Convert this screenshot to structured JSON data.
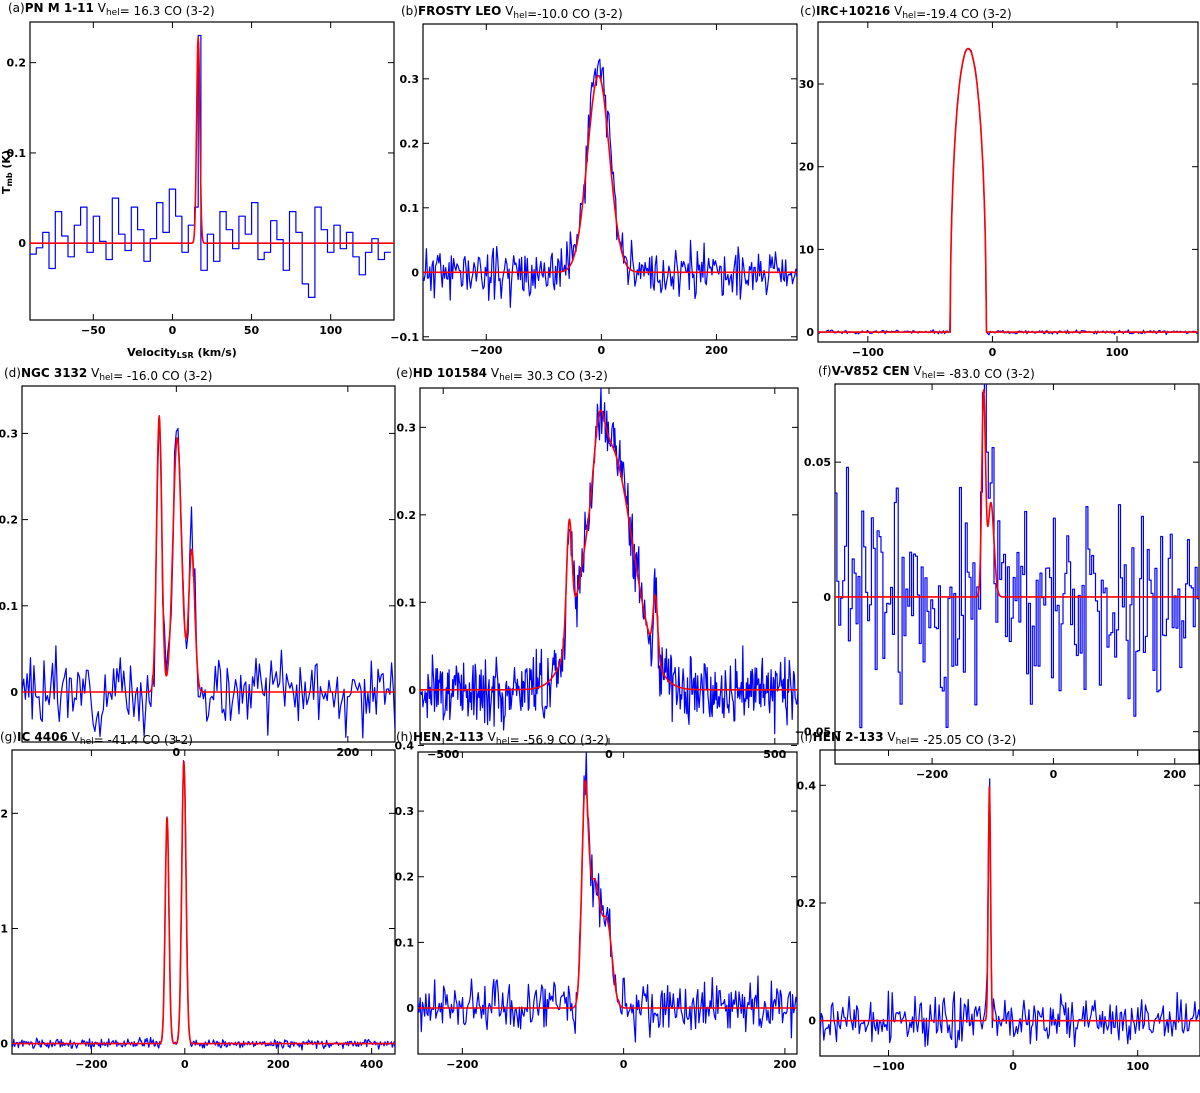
{
  "chart_data": [
    {
      "type": "line",
      "panel": "(a)",
      "object": "PN M 1-11",
      "vhel_label": "V",
      "vhel_sub": "hel",
      "vhel_value": "= 16.3",
      "line": "CO (3-2)",
      "xlabel": "Velocity",
      "xlabel_sub": "LSR",
      "xlabel_unit": " (km/s)",
      "ylabel": "T",
      "ylabel_sub": "mb",
      "ylabel_unit": " (K)",
      "xlim": [
        -90,
        140
      ],
      "ylim": [
        -0.085,
        0.245
      ],
      "xticks": [
        -50,
        0,
        50,
        100
      ],
      "yticks": [
        0,
        0.1,
        0.2
      ],
      "x_tick_labels": [
        "−50",
        "0",
        "50",
        "100"
      ],
      "y_tick_labels": [
        "0",
        "0.1",
        "0.2"
      ],
      "series": [
        {
          "color": "#0000ff",
          "style": "step",
          "x": [
            -90,
            -86,
            -82,
            -78,
            -74,
            -70,
            -66,
            -62,
            -58,
            -54,
            -50,
            -46,
            -42,
            -38,
            -34,
            -30,
            -26,
            -22,
            -18,
            -14,
            -10,
            -6,
            -2,
            2,
            6,
            10,
            14,
            16.3,
            18,
            22,
            26,
            30,
            34,
            38,
            42,
            46,
            50,
            54,
            58,
            62,
            66,
            70,
            74,
            78,
            82,
            86,
            90,
            94,
            98,
            102,
            106,
            110,
            114,
            118,
            122,
            126,
            130,
            134,
            138
          ],
          "y": [
            -0.012,
            -0.005,
            0.012,
            -0.028,
            0.035,
            0.008,
            -0.015,
            0.02,
            0.04,
            -0.01,
            0.03,
            0.002,
            -0.018,
            0.05,
            0.01,
            -0.008,
            0.04,
            0.015,
            -0.02,
            0.005,
            0.045,
            0.012,
            0.06,
            0.03,
            -0.01,
            0.02,
            0.04,
            0.23,
            -0.03,
            0.01,
            -0.02,
            0.035,
            0.015,
            -0.006,
            0.03,
            0.01,
            0.045,
            -0.018,
            -0.01,
            0.025,
            0.004,
            -0.03,
            0.035,
            0.012,
            -0.045,
            -0.06,
            0.04,
            0.015,
            -0.01,
            0.02,
            -0.006,
            0.012,
            -0.015,
            -0.035,
            -0.01,
            0.005,
            -0.018,
            -0.01,
            -0.02
          ]
        },
        {
          "color": "#ff0000",
          "style": "gaussian",
          "components": [
            {
              "amp": 0.228,
              "center": 16.3,
              "sigma": 1.0
            }
          ]
        }
      ]
    },
    {
      "type": "line",
      "panel": "(b)",
      "object": "FROSTY LEO",
      "vhel_label": "V",
      "vhel_sub": "hel",
      "vhel_value": "=-10.0",
      "line": "CO (3-2)",
      "xlim": [
        -310,
        340
      ],
      "ylim": [
        -0.105,
        0.385
      ],
      "xticks": [
        -200,
        0,
        200
      ],
      "yticks": [
        -0.1,
        0,
        0.1,
        0.2,
        0.3
      ],
      "x_tick_labels": [
        "−200",
        "0",
        "200"
      ],
      "y_tick_labels": [
        "−0.1",
        "0",
        "0.1",
        "0.2",
        "0.3"
      ],
      "series": [
        {
          "color": "#0000ff",
          "style": "noisy",
          "noise": 0.02,
          "npts": 330,
          "seed": 11,
          "model": [
            {
              "amp": 0.33,
              "center": -5,
              "sigma": 19
            }
          ]
        },
        {
          "color": "#ff0000",
          "style": "gaussian",
          "components": [
            {
              "amp": 0.305,
              "center": -5,
              "sigma": 19
            }
          ]
        }
      ]
    },
    {
      "type": "line",
      "panel": "(c)",
      "object": "IRC+10216",
      "vhel_label": "V",
      "vhel_sub": "hel",
      "vhel_value": "=-19.4",
      "line": "CO (3-2)",
      "xlim": [
        -140,
        165
      ],
      "ylim": [
        -1.2,
        37.5
      ],
      "xticks": [
        -100,
        0,
        100
      ],
      "yticks": [
        0,
        10,
        20,
        30
      ],
      "x_tick_labels": [
        "−100",
        "0",
        "100"
      ],
      "y_tick_labels": [
        "0",
        "10",
        "20",
        "30"
      ],
      "series": [
        {
          "color": "#0000ff",
          "style": "noisy",
          "noise": 0.12,
          "npts": 300,
          "seed": 5,
          "parabola": {
            "amp": 34.3,
            "center": -19.4,
            "width": 14.5,
            "power": 0.5
          }
        },
        {
          "color": "#ff0000",
          "style": "parabola",
          "parabola": {
            "amp": 34.3,
            "center": -19.4,
            "width": 14.5,
            "power": 0.5
          }
        }
      ]
    },
    {
      "type": "line",
      "panel": "(d)",
      "object": "NGC 3132",
      "vhel_label": "V",
      "vhel_sub": "hel",
      "vhel_value": "= -16.0",
      "line": "CO (3-2)",
      "xlim": [
        -180,
        255
      ],
      "ylim": [
        -0.058,
        0.355
      ],
      "xticks": [
        0,
        200
      ],
      "yticks": [
        0,
        0.1,
        0.2,
        0.3
      ],
      "x_tick_labels": [
        "0",
        "200"
      ],
      "y_tick_labels": [
        "0",
        "0.1",
        "0.2",
        "0.3"
      ],
      "series": [
        {
          "color": "#0000ff",
          "style": "noisy",
          "noise": 0.02,
          "npts": 220,
          "seed": 3,
          "model": [
            {
              "amp": 0.32,
              "center": -20,
              "sigma": 3
            },
            {
              "amp": 0.31,
              "center": 1,
              "sigma": 5
            },
            {
              "amp": 0.17,
              "center": 18,
              "sigma": 3.5
            }
          ]
        },
        {
          "color": "#ff0000",
          "style": "gaussian",
          "components": [
            {
              "amp": 0.32,
              "center": -20,
              "sigma": 3
            },
            {
              "amp": 0.295,
              "center": 1,
              "sigma": 5
            },
            {
              "amp": 0.165,
              "center": 18,
              "sigma": 3.5
            }
          ]
        }
      ]
    },
    {
      "type": "line",
      "panel": "(e)",
      "object": "HD 101584",
      "vhel_label": "V",
      "vhel_sub": "hel",
      "vhel_value": "= 30.3",
      "line": "CO (3-2)",
      "xlim": [
        -570,
        570
      ],
      "ylim": [
        -0.062,
        0.345
      ],
      "xticks": [
        -500,
        0,
        500
      ],
      "yticks": [
        0,
        0.1,
        0.2,
        0.3
      ],
      "x_tick_labels": [
        "−500",
        "0",
        "500"
      ],
      "y_tick_labels": [
        "0",
        "0.1",
        "0.2",
        "0.3"
      ],
      "series": [
        {
          "color": "#0000ff",
          "style": "noisy",
          "noise": 0.018,
          "npts": 520,
          "seed": 17,
          "model": [
            {
              "amp": 0.13,
              "center": -120,
              "sigma": 8
            },
            {
              "amp": 0.28,
              "center": 0,
              "sigma": 70
            },
            {
              "amp": 0.07,
              "center": 140,
              "sigma": 7
            },
            {
              "amp": 0.06,
              "center": -30,
              "sigma": 15
            }
          ]
        },
        {
          "color": "#ff0000",
          "style": "gaussian",
          "components": [
            {
              "amp": 0.13,
              "center": -120,
              "sigma": 8
            },
            {
              "amp": 0.28,
              "center": 0,
              "sigma": 70
            },
            {
              "amp": 0.07,
              "center": 140,
              "sigma": 7
            },
            {
              "amp": 0.06,
              "center": -30,
              "sigma": 15
            }
          ]
        }
      ]
    },
    {
      "type": "line",
      "panel": "(f)",
      "object": "V-V852 CEN",
      "vhel_label": "V",
      "vhel_sub": "hel",
      "vhel_value": "= -83.0",
      "line": "CO (3-2)",
      "xlim": [
        -360,
        240
      ],
      "ylim": [
        -0.062,
        0.079
      ],
      "xticks": [
        -200,
        0,
        200
      ],
      "yticks": [
        -0.05,
        0,
        0.05
      ],
      "x_tick_labels": [
        "−200",
        "0",
        "200"
      ],
      "y_tick_labels": [
        "−0.05",
        "0",
        "0.05"
      ],
      "series": [
        {
          "color": "#0000ff",
          "style": "noisy-step",
          "noise": 0.02,
          "npts": 190,
          "seed": 23,
          "model": [
            {
              "amp": 0.075,
              "center": -115,
              "sigma": 3
            },
            {
              "amp": 0.035,
              "center": -103,
              "sigma": 5
            }
          ]
        },
        {
          "color": "#ff0000",
          "style": "gaussian",
          "components": [
            {
              "amp": 0.075,
              "center": -115,
              "sigma": 3
            },
            {
              "amp": 0.035,
              "center": -103,
              "sigma": 5
            }
          ]
        }
      ]
    },
    {
      "type": "line",
      "panel": "(g)",
      "object": "IC 4406",
      "vhel_label": "V",
      "vhel_sub": "hel",
      "vhel_value": "= -41.4",
      "line": "CO (3-2)",
      "xlim": [
        -370,
        450
      ],
      "ylim": [
        -0.09,
        2.55
      ],
      "xticks": [
        -200,
        0,
        200,
        400
      ],
      "yticks": [
        0,
        1,
        2
      ],
      "x_tick_labels": [
        "−200",
        "0",
        "200",
        "400"
      ],
      "y_tick_labels": [
        "0",
        "1",
        "2"
      ],
      "series": [
        {
          "color": "#0000ff",
          "style": "noisy",
          "noise": 0.02,
          "npts": 420,
          "seed": 31,
          "model": [
            {
              "amp": 1.97,
              "center": -38,
              "sigma": 4
            },
            {
              "amp": 2.5,
              "center": -2,
              "sigma": 4.5
            }
          ]
        },
        {
          "color": "#ff0000",
          "style": "gaussian",
          "components": [
            {
              "amp": 1.97,
              "center": -38,
              "sigma": 4
            },
            {
              "amp": 2.45,
              "center": -2,
              "sigma": 4.5
            }
          ]
        }
      ]
    },
    {
      "type": "line",
      "panel": "(h)",
      "object": "HEN 2-113",
      "vhel_label": "V",
      "vhel_sub": "hel",
      "vhel_value": "= -56.9",
      "line": "CO (3-2)",
      "xlim": [
        -255,
        215
      ],
      "ylim": [
        -0.07,
        0.39
      ],
      "xticks": [
        -200,
        0,
        200
      ],
      "yticks": [
        0,
        0.1,
        0.2,
        0.3,
        0.4
      ],
      "x_tick_labels": [
        "−200",
        "0",
        "200"
      ],
      "y_tick_labels": [
        "0",
        "0.1",
        "0.2",
        "0.3",
        "0.4"
      ],
      "series": [
        {
          "color": "#0000ff",
          "style": "noisy",
          "noise": 0.02,
          "npts": 340,
          "seed": 41,
          "model": [
            {
              "amp": 0.3,
              "center": -48,
              "sigma": 4
            },
            {
              "amp": 0.2,
              "center": -36,
              "sigma": 7
            },
            {
              "amp": 0.13,
              "center": -20,
              "sigma": 6
            }
          ]
        },
        {
          "color": "#ff0000",
          "style": "gaussian",
          "components": [
            {
              "amp": 0.3,
              "center": -48,
              "sigma": 4
            },
            {
              "amp": 0.19,
              "center": -36,
              "sigma": 7
            },
            {
              "amp": 0.12,
              "center": -20,
              "sigma": 6
            }
          ]
        }
      ]
    },
    {
      "type": "line",
      "panel": "(i)",
      "object": "HEN 2-133",
      "vhel_label": "V",
      "vhel_sub": "hel",
      "vhel_value": "= -25.05",
      "line": "CO (3-2)",
      "xlim": [
        -155,
        150
      ],
      "ylim": [
        -0.06,
        0.46
      ],
      "xticks": [
        -100,
        0,
        100
      ],
      "yticks": [
        0,
        0.2,
        0.4
      ],
      "x_tick_labels": [
        "−100",
        "0",
        "100"
      ],
      "y_tick_labels": [
        "0",
        "0.2",
        "0.4"
      ],
      "series": [
        {
          "color": "#0000ff",
          "style": "noisy",
          "noise": 0.02,
          "npts": 300,
          "seed": 53,
          "model": [
            {
              "amp": 0.44,
              "center": -19,
              "sigma": 0.9
            }
          ]
        },
        {
          "color": "#ff0000",
          "style": "gaussian",
          "components": [
            {
              "amp": 0.4,
              "center": -19,
              "sigma": 0.9
            }
          ]
        }
      ]
    }
  ]
}
